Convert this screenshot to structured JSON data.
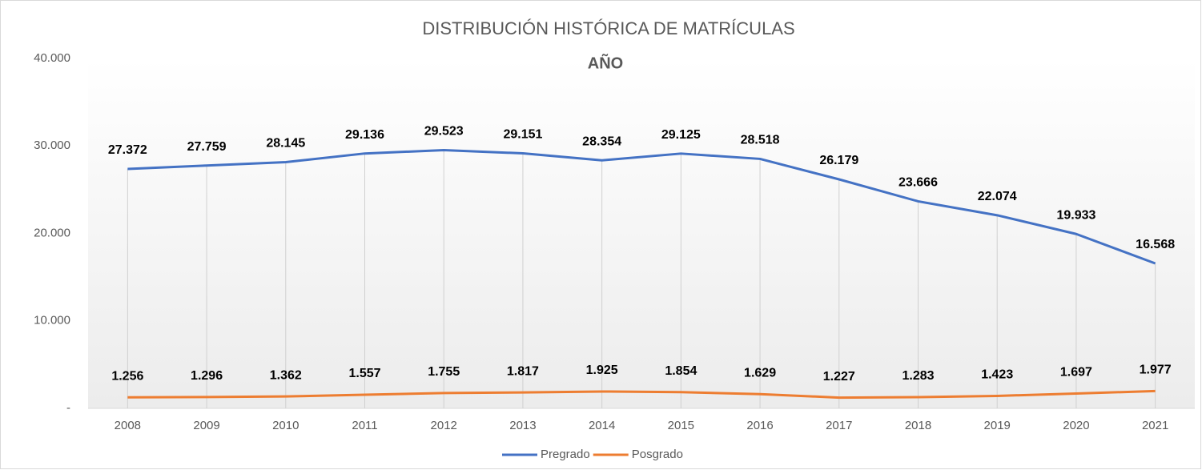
{
  "chart_data": {
    "type": "line",
    "title": "DISTRIBUCIÓN  HISTÓRICA  DE MATRÍCULAS",
    "subtitle": "AÑO",
    "categories": [
      "2008",
      "2009",
      "2010",
      "2011",
      "2012",
      "2013",
      "2014",
      "2015",
      "2016",
      "2017",
      "2018",
      "2019",
      "2020",
      "2021"
    ],
    "series": [
      {
        "name": "Pregrado",
        "color": "#4472c4",
        "values": [
          27372,
          27759,
          28145,
          29136,
          29523,
          29151,
          28354,
          29125,
          28518,
          26179,
          23666,
          22074,
          19933,
          16568
        ],
        "value_labels": [
          "27.372",
          "27.759",
          "28.145",
          "29.136",
          "29.523",
          "29.151",
          "28.354",
          "29.125",
          "28.518",
          "26.179",
          "23.666",
          "22.074",
          "19.933",
          "16.568"
        ]
      },
      {
        "name": "Posgrado",
        "color": "#ed7d31",
        "values": [
          1256,
          1296,
          1362,
          1557,
          1755,
          1817,
          1925,
          1854,
          1629,
          1227,
          1283,
          1423,
          1697,
          1977
        ],
        "value_labels": [
          "1.256",
          "1.296",
          "1.362",
          "1.557",
          "1.755",
          "1.817",
          "1.925",
          "1.854",
          "1.629",
          "1.227",
          "1.283",
          "1.423",
          "1.697",
          "1.977"
        ]
      }
    ],
    "ylim": [
      0,
      40000
    ],
    "yticks": [
      {
        "value": 0,
        "label": "-"
      },
      {
        "value": 10000,
        "label": "10.000"
      },
      {
        "value": 20000,
        "label": "20.000"
      },
      {
        "value": 30000,
        "label": "30.000"
      },
      {
        "value": 40000,
        "label": "40.000"
      }
    ],
    "grid": false,
    "drop_lines": true,
    "legend": "bottom"
  }
}
